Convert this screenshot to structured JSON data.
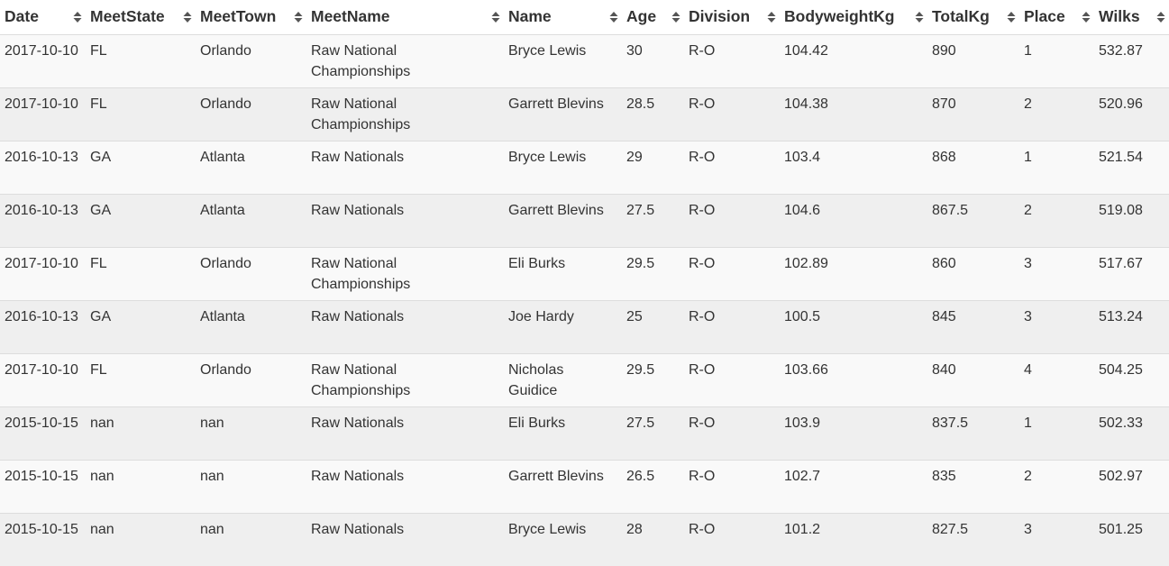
{
  "table": {
    "columns": [
      {
        "key": "date",
        "label": "Date"
      },
      {
        "key": "meet_state",
        "label": "MeetState"
      },
      {
        "key": "meet_town",
        "label": "MeetTown"
      },
      {
        "key": "meet_name",
        "label": "MeetName"
      },
      {
        "key": "name",
        "label": "Name"
      },
      {
        "key": "age",
        "label": "Age"
      },
      {
        "key": "division",
        "label": "Division"
      },
      {
        "key": "bodyweight",
        "label": "BodyweightKg"
      },
      {
        "key": "total",
        "label": "TotalKg"
      },
      {
        "key": "place",
        "label": "Place"
      },
      {
        "key": "wilks",
        "label": "Wilks"
      }
    ],
    "rows": [
      {
        "date": "2017-10-10",
        "meet_state": "FL",
        "meet_town": "Orlando",
        "meet_name": "Raw National Championships",
        "name": "Bryce Lewis",
        "age": "30",
        "division": "R-O",
        "bodyweight": "104.42",
        "total": "890",
        "place": "1",
        "wilks": "532.87"
      },
      {
        "date": "2017-10-10",
        "meet_state": "FL",
        "meet_town": "Orlando",
        "meet_name": "Raw National Championships",
        "name": "Garrett Blevins",
        "age": "28.5",
        "division": "R-O",
        "bodyweight": "104.38",
        "total": "870",
        "place": "2",
        "wilks": "520.96"
      },
      {
        "date": "2016-10-13",
        "meet_state": "GA",
        "meet_town": "Atlanta",
        "meet_name": "Raw Nationals",
        "name": "Bryce Lewis",
        "age": "29",
        "division": "R-O",
        "bodyweight": "103.4",
        "total": "868",
        "place": "1",
        "wilks": "521.54"
      },
      {
        "date": "2016-10-13",
        "meet_state": "GA",
        "meet_town": "Atlanta",
        "meet_name": "Raw Nationals",
        "name": "Garrett Blevins",
        "age": "27.5",
        "division": "R-O",
        "bodyweight": "104.6",
        "total": "867.5",
        "place": "2",
        "wilks": "519.08"
      },
      {
        "date": "2017-10-10",
        "meet_state": "FL",
        "meet_town": "Orlando",
        "meet_name": "Raw National Championships",
        "name": "Eli Burks",
        "age": "29.5",
        "division": "R-O",
        "bodyweight": "102.89",
        "total": "860",
        "place": "3",
        "wilks": "517.67"
      },
      {
        "date": "2016-10-13",
        "meet_state": "GA",
        "meet_town": "Atlanta",
        "meet_name": "Raw Nationals",
        "name": "Joe Hardy",
        "age": "25",
        "division": "R-O",
        "bodyweight": "100.5",
        "total": "845",
        "place": "3",
        "wilks": "513.24"
      },
      {
        "date": "2017-10-10",
        "meet_state": "FL",
        "meet_town": "Orlando",
        "meet_name": "Raw National Championships",
        "name": "Nicholas Guidice",
        "age": "29.5",
        "division": "R-O",
        "bodyweight": "103.66",
        "total": "840",
        "place": "4",
        "wilks": "504.25"
      },
      {
        "date": "2015-10-15",
        "meet_state": "nan",
        "meet_town": "nan",
        "meet_name": "Raw Nationals",
        "name": "Eli Burks",
        "age": "27.5",
        "division": "R-O",
        "bodyweight": "103.9",
        "total": "837.5",
        "place": "1",
        "wilks": "502.33"
      },
      {
        "date": "2015-10-15",
        "meet_state": "nan",
        "meet_town": "nan",
        "meet_name": "Raw Nationals",
        "name": "Garrett Blevins",
        "age": "26.5",
        "division": "R-O",
        "bodyweight": "102.7",
        "total": "835",
        "place": "2",
        "wilks": "502.97"
      },
      {
        "date": "2015-10-15",
        "meet_state": "nan",
        "meet_town": "nan",
        "meet_name": "Raw Nationals",
        "name": "Bryce Lewis",
        "age": "28",
        "division": "R-O",
        "bodyweight": "101.2",
        "total": "827.5",
        "place": "3",
        "wilks": "501.25"
      }
    ]
  },
  "icons": {
    "sort": "sort-both-icon"
  },
  "colors": {
    "text": "#333333",
    "row_odd": "#f9f9f9",
    "row_even": "#efefef",
    "border": "#dddddd",
    "sort_icon": "#555555"
  }
}
